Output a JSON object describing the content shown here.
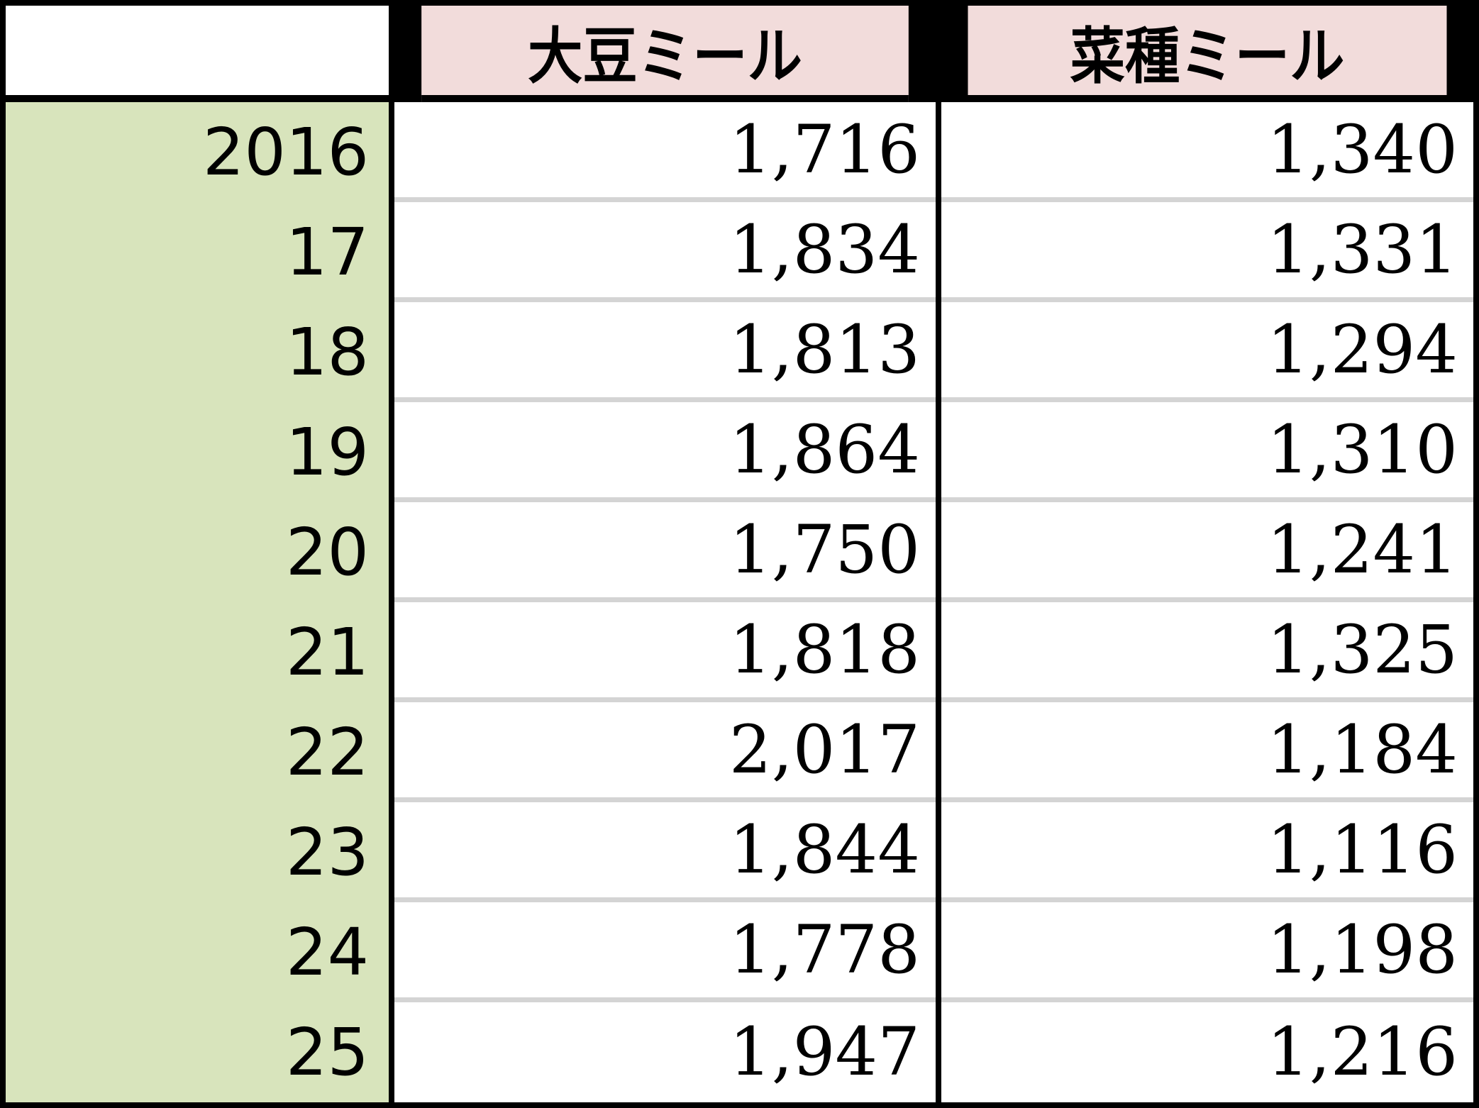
{
  "table": {
    "headers": [
      "",
      "大豆ミール",
      "菜種ミール"
    ],
    "rows": [
      {
        "year": "2016",
        "soybean_meal": "1,716",
        "rapeseed_meal": "1,340"
      },
      {
        "year": "17",
        "soybean_meal": "1,834",
        "rapeseed_meal": "1,331"
      },
      {
        "year": "18",
        "soybean_meal": "1,813",
        "rapeseed_meal": "1,294"
      },
      {
        "year": "19",
        "soybean_meal": "1,864",
        "rapeseed_meal": "1,310"
      },
      {
        "year": "20",
        "soybean_meal": "1,750",
        "rapeseed_meal": "1,241"
      },
      {
        "year": "21",
        "soybean_meal": "1,818",
        "rapeseed_meal": "1,325"
      },
      {
        "year": "22",
        "soybean_meal": "2,017",
        "rapeseed_meal": "1,184"
      },
      {
        "year": "23",
        "soybean_meal": "1,844",
        "rapeseed_meal": "1,116"
      },
      {
        "year": "24",
        "soybean_meal": "1,778",
        "rapeseed_meal": "1,198"
      },
      {
        "year": "25",
        "soybean_meal": "1,947",
        "rapeseed_meal": "1,216"
      }
    ]
  },
  "colors": {
    "header_bg": "#f2dcdb",
    "year_bg": "#d8e4bc",
    "row_divider": "#d4d4d4"
  }
}
